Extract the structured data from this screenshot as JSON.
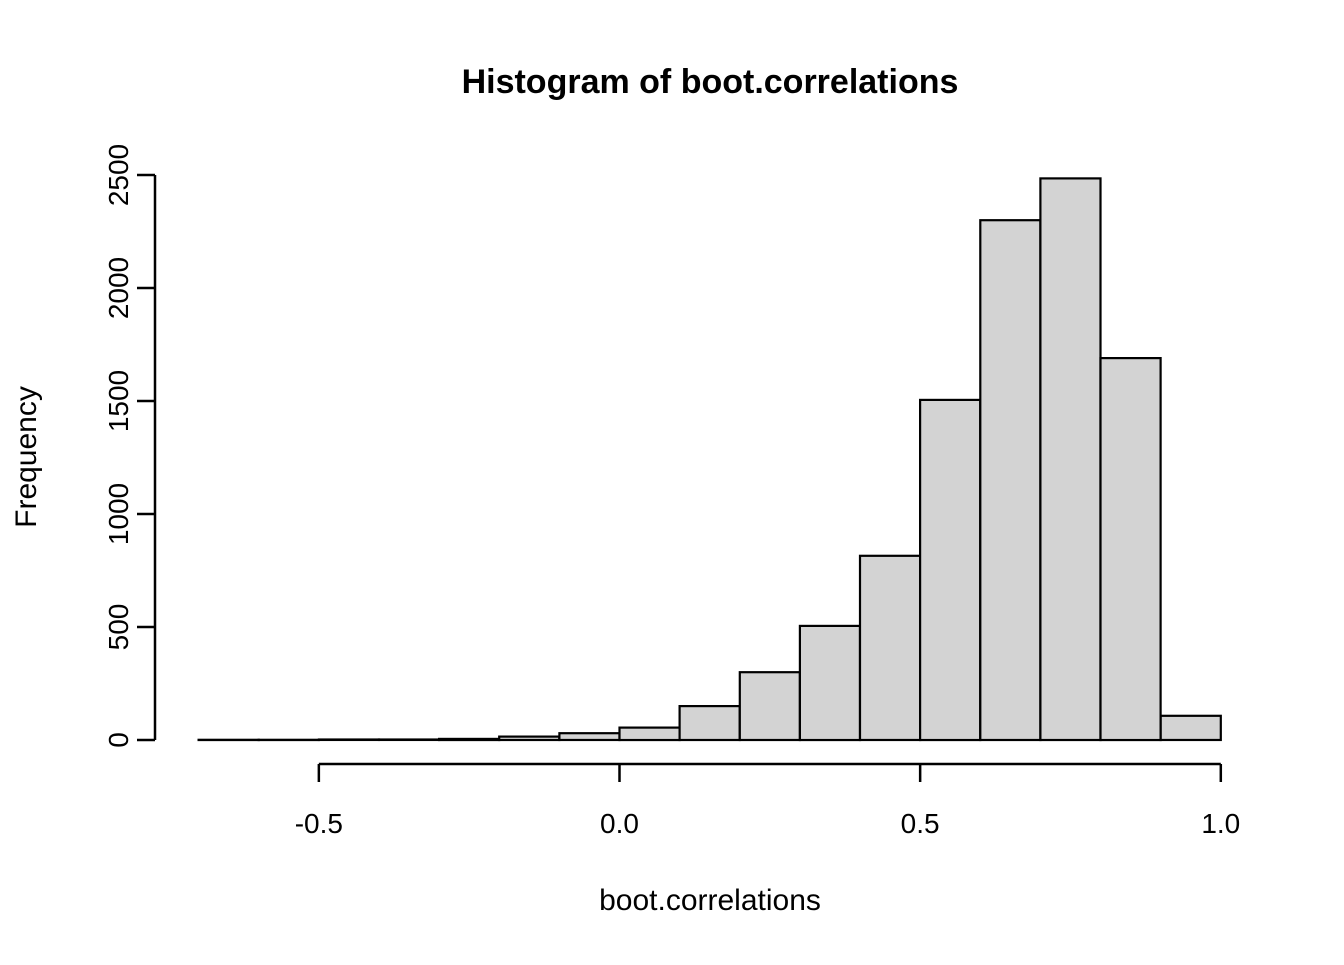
{
  "title": "Histogram of boot.correlations",
  "x_axis": {
    "label": "boot.correlations",
    "tick_values": [
      -0.5,
      0.0,
      0.5,
      1.0
    ],
    "tick_labels": [
      "-0.5",
      "0.0",
      "0.5",
      "1.0"
    ]
  },
  "y_axis": {
    "label": "Frequency",
    "tick_values": [
      0,
      500,
      1000,
      1500,
      2000,
      2500
    ],
    "tick_labels": [
      "0",
      "500",
      "1000",
      "1500",
      "2000",
      "2500"
    ]
  },
  "colors": {
    "bar_fill": "#d3d3d3",
    "bar_border": "#000000",
    "axis": "#000000",
    "background": "#ffffff"
  },
  "chart_data": {
    "type": "bar",
    "subtype": "histogram",
    "title": "Histogram of boot.correlations",
    "xlabel": "boot.correlations",
    "ylabel": "Frequency",
    "bin_width": 0.1,
    "breaks": [
      -0.7,
      -0.6,
      -0.5,
      -0.4,
      -0.3,
      -0.2,
      -0.1,
      0.0,
      0.1,
      0.2,
      0.3,
      0.4,
      0.5,
      0.6,
      0.7,
      0.8,
      0.9,
      1.0
    ],
    "counts": [
      1,
      1,
      2,
      2,
      5,
      15,
      30,
      55,
      150,
      300,
      505,
      815,
      1505,
      2300,
      2485,
      1690,
      107
    ],
    "xlim": [
      -0.7,
      1.0
    ],
    "ylim": [
      0,
      2500
    ],
    "grid": false,
    "legend": null
  }
}
